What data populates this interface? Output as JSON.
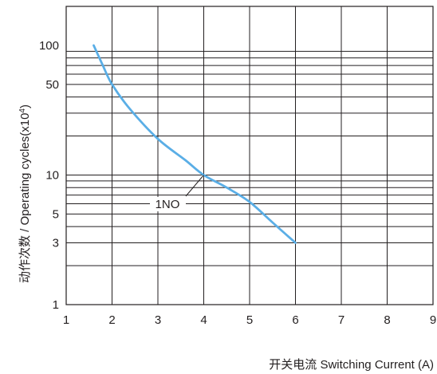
{
  "chart_data": {
    "type": "line",
    "title": "",
    "xlabel": "开关电流 Switching Current (A)",
    "ylabel_main": "动作次数 / Operating cycles(x10",
    "ylabel_sup": "4",
    "ylabel_tail": ")",
    "x_scale": "linear",
    "y_scale": "log",
    "xlim": [
      1,
      9
    ],
    "ylim": [
      1,
      200
    ],
    "x_ticks": [
      "1",
      "2",
      "3",
      "4",
      "5",
      "6",
      "7",
      "8",
      "9"
    ],
    "y_ticks": [
      "1",
      "3",
      "5",
      "10",
      "50",
      "100"
    ],
    "grid": true,
    "series": [
      {
        "name": "1NO",
        "color": "#5aaee6",
        "x": [
          1.6,
          1.8,
          2.0,
          2.4,
          3.0,
          3.6,
          4.0,
          4.5,
          5.0,
          5.5,
          6.0
        ],
        "y": [
          100,
          70,
          50,
          32,
          19,
          13,
          10,
          8,
          6.2,
          4.3,
          3
        ]
      }
    ],
    "annotation": {
      "text": "1NO",
      "target_x": 4.0,
      "target_y": 10
    }
  }
}
